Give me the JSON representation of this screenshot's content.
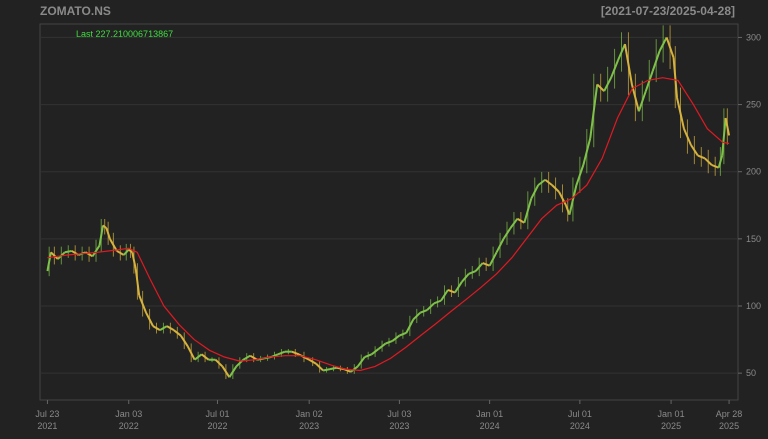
{
  "chart_data": {
    "type": "line",
    "title": "ZOMATO.NS",
    "date_range": "[2021-07-23/2025-04-28]",
    "last_label": "Last 227.210006713867",
    "ylim": [
      30,
      310
    ],
    "yticks": [
      50,
      100,
      150,
      200,
      250,
      300
    ],
    "xticks": [
      {
        "date": "2021-07-23",
        "line1": "Jul 23",
        "line2": "2021"
      },
      {
        "date": "2022-01-03",
        "line1": "Jan 03",
        "line2": "2022"
      },
      {
        "date": "2022-07-01",
        "line1": "Jul 01",
        "line2": "2022"
      },
      {
        "date": "2023-01-02",
        "line1": "Jan 02",
        "line2": "2023"
      },
      {
        "date": "2023-07-03",
        "line1": "Jul 03",
        "line2": "2023"
      },
      {
        "date": "2024-01-01",
        "line1": "Jan 01",
        "line2": "2024"
      },
      {
        "date": "2024-07-01",
        "line1": "Jul 01",
        "line2": "2024"
      },
      {
        "date": "2025-01-01",
        "line1": "Jan 01",
        "line2": "2025"
      },
      {
        "date": "2025-04-28",
        "line1": "Apr 28",
        "line2": "2025"
      }
    ],
    "grid": true,
    "colors": {
      "background": "#222222",
      "grid": "#333333",
      "axis_text": "#8a8a8a",
      "up": "#7fc24a",
      "down": "#d6b23e",
      "moving_average": "#e01a22",
      "last_label": "#40e040"
    },
    "series": [
      {
        "kind": "price",
        "points": [
          [
            "2021-07-23",
            126
          ],
          [
            "2021-07-30",
            140
          ],
          [
            "2021-08-13",
            135
          ],
          [
            "2021-08-27",
            140
          ],
          [
            "2021-09-10",
            141
          ],
          [
            "2021-09-24",
            138
          ],
          [
            "2021-10-08",
            140
          ],
          [
            "2021-10-22",
            137
          ],
          [
            "2021-11-05",
            145
          ],
          [
            "2021-11-12",
            160
          ],
          [
            "2021-11-19",
            158
          ],
          [
            "2021-11-26",
            150
          ],
          [
            "2021-12-10",
            141
          ],
          [
            "2021-12-24",
            138
          ],
          [
            "2022-01-03",
            142
          ],
          [
            "2022-01-10",
            140
          ],
          [
            "2022-01-17",
            128
          ],
          [
            "2022-01-24",
            108
          ],
          [
            "2022-02-07",
            95
          ],
          [
            "2022-02-21",
            85
          ],
          [
            "2022-03-07",
            82
          ],
          [
            "2022-03-21",
            85
          ],
          [
            "2022-04-04",
            82
          ],
          [
            "2022-04-18",
            78
          ],
          [
            "2022-05-02",
            70
          ],
          [
            "2022-05-16",
            60
          ],
          [
            "2022-05-30",
            64
          ],
          [
            "2022-06-13",
            60
          ],
          [
            "2022-06-27",
            60
          ],
          [
            "2022-07-11",
            55
          ],
          [
            "2022-07-25",
            47
          ],
          [
            "2022-08-08",
            55
          ],
          [
            "2022-08-22",
            60
          ],
          [
            "2022-09-05",
            63
          ],
          [
            "2022-09-19",
            60
          ],
          [
            "2022-10-03",
            61
          ],
          [
            "2022-10-17",
            62
          ],
          [
            "2022-10-31",
            64
          ],
          [
            "2022-11-14",
            66
          ],
          [
            "2022-11-28",
            66
          ],
          [
            "2022-12-12",
            64
          ],
          [
            "2023-01-02",
            60
          ],
          [
            "2023-01-16",
            57
          ],
          [
            "2023-01-30",
            52
          ],
          [
            "2023-02-13",
            53
          ],
          [
            "2023-02-27",
            54
          ],
          [
            "2023-03-13",
            53
          ],
          [
            "2023-03-27",
            51
          ],
          [
            "2023-04-10",
            55
          ],
          [
            "2023-04-24",
            62
          ],
          [
            "2023-05-08",
            64
          ],
          [
            "2023-05-22",
            68
          ],
          [
            "2023-06-05",
            72
          ],
          [
            "2023-06-19",
            74
          ],
          [
            "2023-07-03",
            78
          ],
          [
            "2023-07-17",
            80
          ],
          [
            "2023-07-31",
            90
          ],
          [
            "2023-08-14",
            95
          ],
          [
            "2023-08-28",
            97
          ],
          [
            "2023-09-11",
            102
          ],
          [
            "2023-09-25",
            104
          ],
          [
            "2023-10-09",
            112
          ],
          [
            "2023-10-23",
            110
          ],
          [
            "2023-11-06",
            118
          ],
          [
            "2023-11-20",
            124
          ],
          [
            "2023-12-04",
            126
          ],
          [
            "2023-12-18",
            132
          ],
          [
            "2024-01-01",
            130
          ],
          [
            "2024-01-15",
            140
          ],
          [
            "2024-01-29",
            150
          ],
          [
            "2024-02-12",
            158
          ],
          [
            "2024-02-26",
            165
          ],
          [
            "2024-03-11",
            162
          ],
          [
            "2024-03-25",
            180
          ],
          [
            "2024-04-08",
            190
          ],
          [
            "2024-04-22",
            194
          ],
          [
            "2024-05-06",
            190
          ],
          [
            "2024-05-20",
            185
          ],
          [
            "2024-06-03",
            175
          ],
          [
            "2024-06-10",
            168
          ],
          [
            "2024-06-24",
            190
          ],
          [
            "2024-07-08",
            205
          ],
          [
            "2024-07-22",
            225
          ],
          [
            "2024-08-05",
            265
          ],
          [
            "2024-08-19",
            260
          ],
          [
            "2024-09-02",
            270
          ],
          [
            "2024-09-16",
            283
          ],
          [
            "2024-09-30",
            295
          ],
          [
            "2024-10-14",
            265
          ],
          [
            "2024-10-28",
            245
          ],
          [
            "2024-11-11",
            260
          ],
          [
            "2024-11-25",
            275
          ],
          [
            "2024-12-09",
            290
          ],
          [
            "2024-12-23",
            300
          ],
          [
            "2025-01-06",
            285
          ],
          [
            "2025-01-13",
            255
          ],
          [
            "2025-01-27",
            232
          ],
          [
            "2025-02-10",
            220
          ],
          [
            "2025-02-24",
            212
          ],
          [
            "2025-03-10",
            210
          ],
          [
            "2025-03-24",
            205
          ],
          [
            "2025-04-07",
            203
          ],
          [
            "2025-04-14",
            212
          ],
          [
            "2025-04-21",
            240
          ],
          [
            "2025-04-28",
            227
          ]
        ]
      },
      {
        "kind": "moving_average",
        "points": [
          [
            "2021-07-23",
            136
          ],
          [
            "2021-09-01",
            138
          ],
          [
            "2021-11-01",
            140
          ],
          [
            "2021-12-15",
            142
          ],
          [
            "2022-01-03",
            143
          ],
          [
            "2022-01-20",
            140
          ],
          [
            "2022-02-15",
            120
          ],
          [
            "2022-03-15",
            100
          ],
          [
            "2022-04-15",
            86
          ],
          [
            "2022-05-15",
            75
          ],
          [
            "2022-06-15",
            67
          ],
          [
            "2022-07-15",
            62
          ],
          [
            "2022-08-15",
            59
          ],
          [
            "2022-09-15",
            60
          ],
          [
            "2022-10-15",
            62
          ],
          [
            "2022-11-15",
            63
          ],
          [
            "2022-12-15",
            63
          ],
          [
            "2023-01-15",
            60
          ],
          [
            "2023-02-15",
            56
          ],
          [
            "2023-03-15",
            53
          ],
          [
            "2023-04-15",
            52
          ],
          [
            "2023-05-15",
            55
          ],
          [
            "2023-06-15",
            61
          ],
          [
            "2023-07-15",
            69
          ],
          [
            "2023-08-15",
            78
          ],
          [
            "2023-09-15",
            87
          ],
          [
            "2023-10-15",
            96
          ],
          [
            "2023-11-15",
            105
          ],
          [
            "2023-12-15",
            114
          ],
          [
            "2024-01-15",
            124
          ],
          [
            "2024-02-15",
            136
          ],
          [
            "2024-03-15",
            150
          ],
          [
            "2024-04-15",
            165
          ],
          [
            "2024-05-15",
            175
          ],
          [
            "2024-06-15",
            180
          ],
          [
            "2024-07-15",
            190
          ],
          [
            "2024-08-15",
            210
          ],
          [
            "2024-09-15",
            240
          ],
          [
            "2024-10-15",
            262
          ],
          [
            "2024-11-15",
            268
          ],
          [
            "2024-12-15",
            270
          ],
          [
            "2025-01-15",
            268
          ],
          [
            "2025-02-15",
            250
          ],
          [
            "2025-03-15",
            232
          ],
          [
            "2025-04-15",
            222
          ],
          [
            "2025-04-28",
            221
          ]
        ]
      }
    ]
  }
}
